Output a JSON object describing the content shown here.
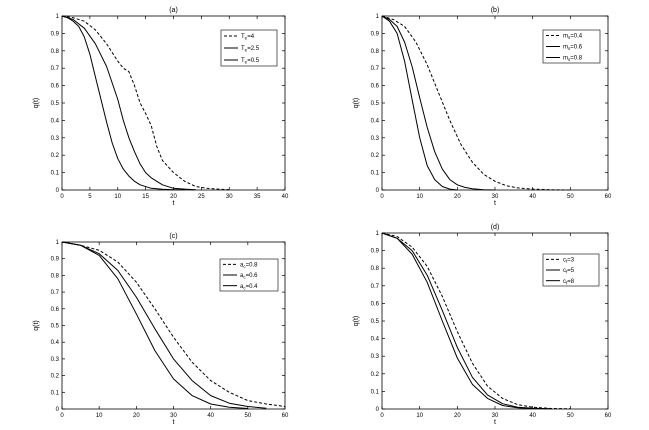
{
  "chart_data": [
    {
      "type": "line",
      "title": "(a)",
      "xlabel": "t",
      "ylabel": "q(t)",
      "xlim": [
        0,
        40
      ],
      "ylim": [
        0,
        1
      ],
      "xticks": [
        "0",
        "5",
        "10",
        "15",
        "20",
        "25",
        "30",
        "35",
        "40"
      ],
      "yticks": [
        "0",
        "0.1",
        "0.2",
        "0.3",
        "0.4",
        "0.5",
        "0.6",
        "0.7",
        "0.8",
        "0.9",
        "1"
      ],
      "legend_position": "top-right",
      "series": [
        {
          "name_main": "T",
          "name_sub": "e",
          "name_rest": "=4",
          "style": "dashed",
          "x": [
            0,
            2,
            4,
            6,
            8,
            10,
            11,
            12,
            13,
            14,
            15,
            16,
            17,
            18,
            20,
            22,
            24,
            26,
            28,
            30
          ],
          "y": [
            1,
            0.99,
            0.97,
            0.92,
            0.84,
            0.74,
            0.7,
            0.68,
            0.6,
            0.5,
            0.44,
            0.37,
            0.25,
            0.17,
            0.1,
            0.05,
            0.02,
            0.01,
            0.005,
            0.002
          ]
        },
        {
          "name_main": "T",
          "name_sub": "e",
          "name_rest": "=2.5",
          "style": "solid",
          "x": [
            0,
            2,
            4,
            6,
            8,
            10,
            11,
            12,
            13,
            14,
            15,
            16,
            17,
            18,
            20,
            22,
            24
          ],
          "y": [
            1,
            0.98,
            0.93,
            0.84,
            0.71,
            0.52,
            0.4,
            0.3,
            0.22,
            0.15,
            0.1,
            0.07,
            0.05,
            0.03,
            0.01,
            0.005,
            0.002
          ]
        },
        {
          "name_main": "T",
          "name_sub": "e",
          "name_rest": "=0.5",
          "style": "solid",
          "x": [
            0,
            1,
            2,
            3,
            4,
            5,
            6,
            7,
            8,
            9,
            10,
            11,
            12,
            13,
            14,
            16,
            18,
            20,
            22
          ],
          "y": [
            1,
            0.99,
            0.97,
            0.94,
            0.88,
            0.78,
            0.65,
            0.52,
            0.39,
            0.27,
            0.18,
            0.12,
            0.08,
            0.05,
            0.03,
            0.01,
            0.004,
            0.002,
            0.001
          ]
        }
      ]
    },
    {
      "type": "line",
      "title": "(b)",
      "xlabel": "t",
      "ylabel": "q(t)",
      "xlim": [
        0,
        60
      ],
      "ylim": [
        0,
        1
      ],
      "xticks": [
        "0",
        "10",
        "20",
        "30",
        "40",
        "50",
        "60"
      ],
      "yticks": [
        "0",
        "0.1",
        "0.2",
        "0.3",
        "0.4",
        "0.5",
        "0.6",
        "0.7",
        "0.8",
        "0.9",
        "1"
      ],
      "legend_position": "top-right",
      "series": [
        {
          "name_main": "m",
          "name_sub": "s",
          "name_rest": "=0.4",
          "style": "dashed",
          "x": [
            0,
            3,
            6,
            9,
            12,
            15,
            18,
            21,
            24,
            27,
            30,
            33,
            36,
            40,
            45,
            50
          ],
          "y": [
            1,
            0.98,
            0.94,
            0.85,
            0.72,
            0.56,
            0.4,
            0.26,
            0.16,
            0.09,
            0.05,
            0.025,
            0.012,
            0.005,
            0.001,
            0
          ]
        },
        {
          "name_main": "m",
          "name_sub": "s",
          "name_rest": "=0.6",
          "style": "solid",
          "x": [
            0,
            2,
            4,
            6,
            8,
            10,
            12,
            14,
            16,
            18,
            20,
            22,
            24,
            27,
            30
          ],
          "y": [
            1,
            0.98,
            0.94,
            0.85,
            0.71,
            0.53,
            0.36,
            0.22,
            0.12,
            0.06,
            0.03,
            0.015,
            0.007,
            0.002,
            0
          ]
        },
        {
          "name_main": "m",
          "name_sub": "s",
          "name_rest": "=0.8",
          "style": "solid",
          "x": [
            0,
            2,
            4,
            6,
            8,
            10,
            12,
            14,
            16,
            18,
            20
          ],
          "y": [
            1,
            0.97,
            0.9,
            0.74,
            0.52,
            0.3,
            0.14,
            0.06,
            0.02,
            0.005,
            0
          ]
        }
      ]
    },
    {
      "type": "line",
      "title": "(c)",
      "xlabel": "t",
      "ylabel": "q(t)",
      "xlim": [
        0,
        60
      ],
      "ylim": [
        0,
        1
      ],
      "xticks": [
        "0",
        "10",
        "20",
        "30",
        "40",
        "50",
        "60"
      ],
      "yticks": [
        "0",
        "0.1",
        "0.2",
        "0.3",
        "0.4",
        "0.5",
        "0.6",
        "0.7",
        "0.8",
        "0.9",
        "1"
      ],
      "legend_position": "top-right",
      "series": [
        {
          "name_main": "a",
          "name_sub": "c",
          "name_rest": "=0.8",
          "style": "dashed",
          "x": [
            0,
            5,
            10,
            15,
            20,
            25,
            30,
            35,
            40,
            45,
            50,
            55,
            60
          ],
          "y": [
            1,
            0.98,
            0.95,
            0.88,
            0.76,
            0.6,
            0.43,
            0.28,
            0.17,
            0.1,
            0.05,
            0.03,
            0.015
          ]
        },
        {
          "name_main": "a",
          "name_sub": "c",
          "name_rest": "=0.6",
          "style": "solid",
          "x": [
            0,
            5,
            10,
            15,
            20,
            25,
            30,
            35,
            40,
            45,
            50,
            55
          ],
          "y": [
            1,
            0.98,
            0.93,
            0.83,
            0.67,
            0.48,
            0.3,
            0.17,
            0.08,
            0.035,
            0.015,
            0.005
          ]
        },
        {
          "name_main": "a",
          "name_sub": "c",
          "name_rest": "=0.4",
          "style": "solid",
          "x": [
            0,
            5,
            10,
            15,
            20,
            25,
            30,
            35,
            40,
            45,
            50
          ],
          "y": [
            1,
            0.98,
            0.92,
            0.78,
            0.57,
            0.35,
            0.18,
            0.08,
            0.03,
            0.01,
            0.003
          ]
        }
      ]
    },
    {
      "type": "line",
      "title": "(d)",
      "xlabel": "t",
      "ylabel": "q(t)",
      "xlim": [
        0,
        60
      ],
      "ylim": [
        0,
        1
      ],
      "xticks": [
        "0",
        "10",
        "20",
        "30",
        "40",
        "50",
        "60"
      ],
      "yticks": [
        "0",
        "0.1",
        "0.2",
        "0.3",
        "0.4",
        "0.5",
        "0.6",
        "0.7",
        "0.8",
        "0.9",
        "1"
      ],
      "legend_position": "top-right",
      "series": [
        {
          "name_main": "c",
          "name_sub": "f",
          "name_rest": "=3",
          "style": "dashed",
          "x": [
            0,
            4,
            8,
            12,
            16,
            20,
            24,
            28,
            32,
            36,
            40,
            45,
            50
          ],
          "y": [
            1,
            0.98,
            0.92,
            0.81,
            0.64,
            0.44,
            0.26,
            0.13,
            0.06,
            0.025,
            0.01,
            0.003,
            0.001
          ]
        },
        {
          "name_main": "c",
          "name_sub": "f",
          "name_rest": "=5",
          "style": "solid",
          "x": [
            0,
            4,
            8,
            12,
            16,
            20,
            24,
            28,
            32,
            36,
            40,
            45
          ],
          "y": [
            1,
            0.97,
            0.9,
            0.76,
            0.56,
            0.35,
            0.18,
            0.08,
            0.03,
            0.01,
            0.004,
            0.001
          ]
        },
        {
          "name_main": "c",
          "name_sub": "f",
          "name_rest": "=8",
          "style": "solid",
          "x": [
            0,
            4,
            8,
            12,
            16,
            20,
            24,
            28,
            32,
            36,
            40
          ],
          "y": [
            1,
            0.97,
            0.88,
            0.72,
            0.5,
            0.29,
            0.14,
            0.06,
            0.02,
            0.007,
            0.002
          ]
        }
      ]
    }
  ]
}
